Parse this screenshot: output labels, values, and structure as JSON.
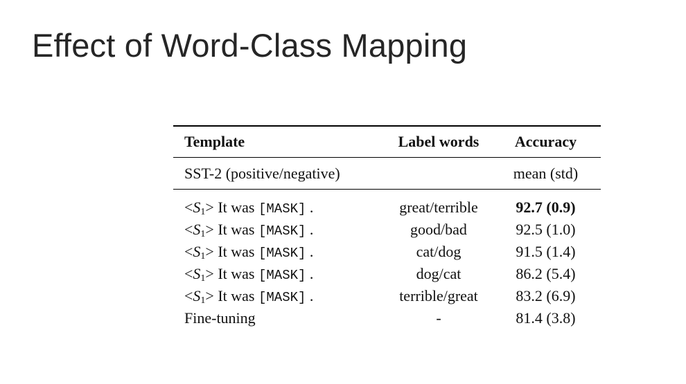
{
  "slide": {
    "title": "Effect of Word-Class Mapping"
  },
  "table": {
    "headers": {
      "template": "Template",
      "label_words": "Label words",
      "accuracy": "Accuracy"
    },
    "dataset": {
      "name": "SST-2 (positive/negative)",
      "metric": "mean (std)"
    },
    "rows": [
      {
        "template_suffix": " It was ",
        "mask": "[MASK]",
        "period": " .",
        "label_words": "great/terrible",
        "accuracy": "92.7 (0.9)"
      },
      {
        "template_suffix": " It was ",
        "mask": "[MASK]",
        "period": " .",
        "label_words": "good/bad",
        "accuracy": "92.5 (1.0)"
      },
      {
        "template_suffix": " It was ",
        "mask": "[MASK]",
        "period": " .",
        "label_words": "cat/dog",
        "accuracy": "91.5 (1.4)"
      },
      {
        "template_suffix": " It was ",
        "mask": "[MASK]",
        "period": " .",
        "label_words": "dog/cat",
        "accuracy": "86.2 (5.4)"
      },
      {
        "template_suffix": " It was ",
        "mask": "[MASK]",
        "period": " .",
        "label_words": "terrible/great",
        "accuracy": "83.2 (6.9)"
      }
    ],
    "finetune": {
      "template": "Fine-tuning",
      "label_words": "-",
      "accuracy": "81.4 (3.8)"
    },
    "sentence_symbol": "S",
    "sentence_index": "1"
  }
}
